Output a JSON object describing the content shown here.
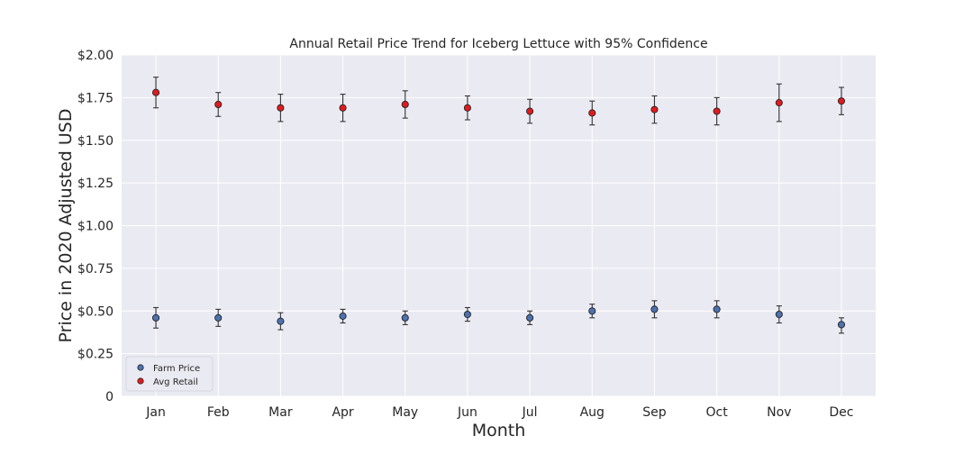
{
  "chart_data": {
    "type": "scatter",
    "title": "Annual Retail Price Trend for Iceberg Lettuce with 95% Confidence",
    "xlabel": "Month",
    "ylabel": "Price in 2020 Adjusted USD",
    "categories": [
      "Jan",
      "Feb",
      "Mar",
      "Apr",
      "May",
      "Jun",
      "Jul",
      "Aug",
      "Sep",
      "Oct",
      "Nov",
      "Dec"
    ],
    "ylim": [
      0,
      2.0
    ],
    "yticks": [
      {
        "value": 0,
        "label": "0"
      },
      {
        "value": 0.25,
        "label": "$0.25"
      },
      {
        "value": 0.5,
        "label": "$0.50"
      },
      {
        "value": 0.75,
        "label": "$0.75"
      },
      {
        "value": 1.0,
        "label": "$1.00"
      },
      {
        "value": 1.25,
        "label": "$1.25"
      },
      {
        "value": 1.5,
        "label": "$1.50"
      },
      {
        "value": 1.75,
        "label": "$1.75"
      },
      {
        "value": 2.0,
        "label": "$2.00"
      }
    ],
    "grid": true,
    "legend_position": "bottom-left",
    "series": [
      {
        "name": "Farm Price",
        "color": "#4c72b0",
        "values": [
          0.46,
          0.46,
          0.44,
          0.47,
          0.46,
          0.48,
          0.46,
          0.5,
          0.51,
          0.51,
          0.48,
          0.42
        ],
        "lower": [
          0.4,
          0.41,
          0.39,
          0.43,
          0.42,
          0.44,
          0.42,
          0.46,
          0.46,
          0.46,
          0.43,
          0.37
        ],
        "upper": [
          0.52,
          0.51,
          0.49,
          0.51,
          0.5,
          0.52,
          0.5,
          0.54,
          0.56,
          0.56,
          0.53,
          0.46
        ]
      },
      {
        "name": "Avg Retail",
        "color": "#e31a1c",
        "values": [
          1.78,
          1.71,
          1.69,
          1.69,
          1.71,
          1.69,
          1.67,
          1.66,
          1.68,
          1.67,
          1.72,
          1.73
        ],
        "lower": [
          1.69,
          1.64,
          1.61,
          1.61,
          1.63,
          1.62,
          1.6,
          1.59,
          1.6,
          1.59,
          1.61,
          1.65
        ],
        "upper": [
          1.87,
          1.78,
          1.77,
          1.77,
          1.79,
          1.76,
          1.74,
          1.73,
          1.76,
          1.75,
          1.83,
          1.81
        ]
      }
    ]
  }
}
